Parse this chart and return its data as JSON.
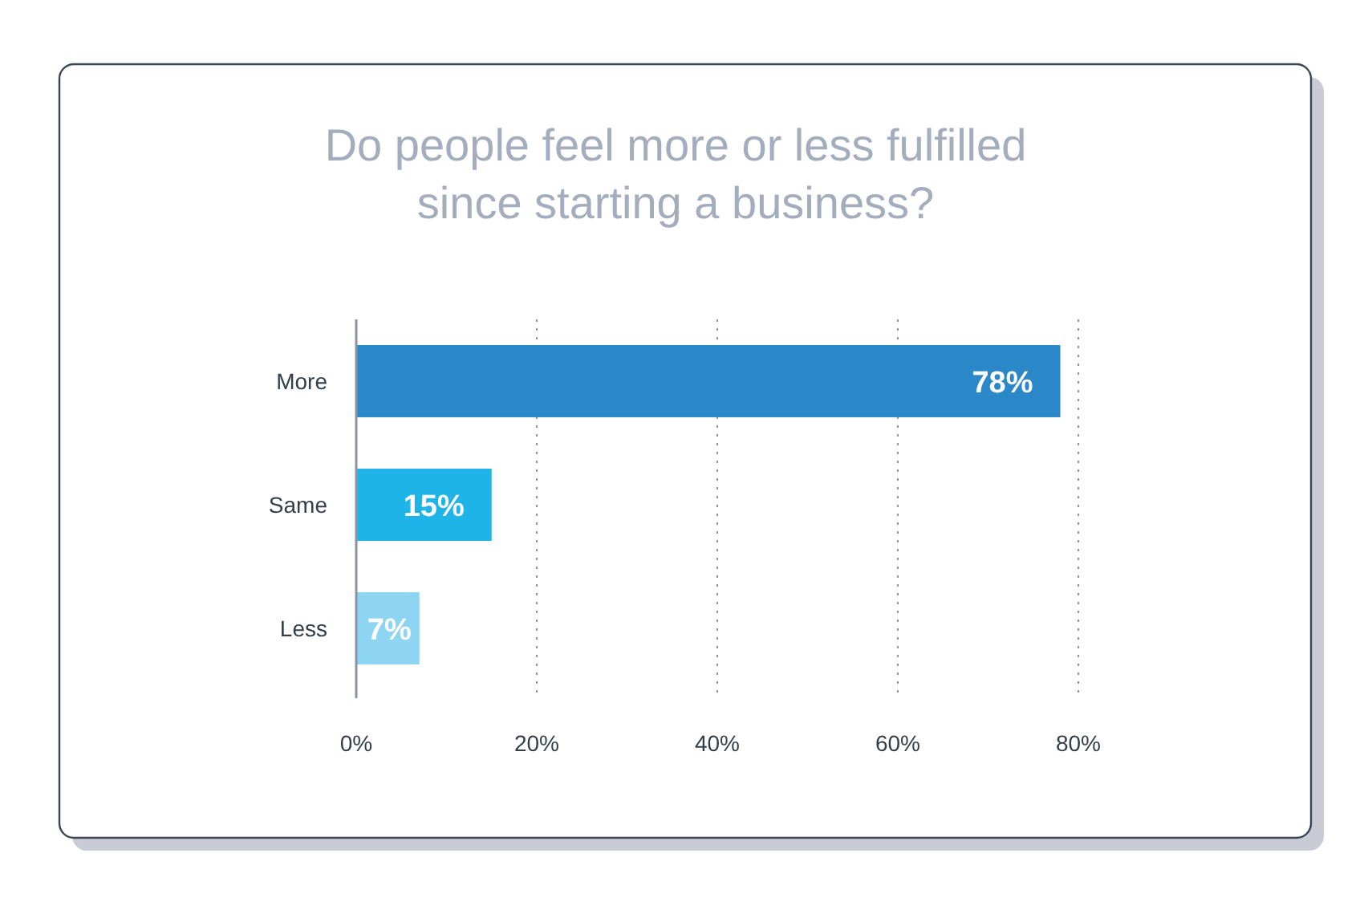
{
  "chart_data": {
    "type": "bar",
    "orientation": "horizontal",
    "title": "Do people feel more or less fulfilled since starting a business?",
    "categories": [
      "More",
      "Same",
      "Less"
    ],
    "values": [
      78,
      15,
      7
    ],
    "colors": [
      "#2b88c8",
      "#1eb4e8",
      "#8dd5f3"
    ],
    "value_labels": [
      "78%",
      "15%",
      "7%"
    ],
    "xlim": [
      0,
      80
    ],
    "xticks": [
      {
        "value": 0,
        "label": "0%"
      },
      {
        "value": 20,
        "label": "20%"
      },
      {
        "value": 40,
        "label": "40%"
      },
      {
        "value": 60,
        "label": "60%"
      },
      {
        "value": 80,
        "label": "80%"
      }
    ],
    "grid": "x"
  }
}
